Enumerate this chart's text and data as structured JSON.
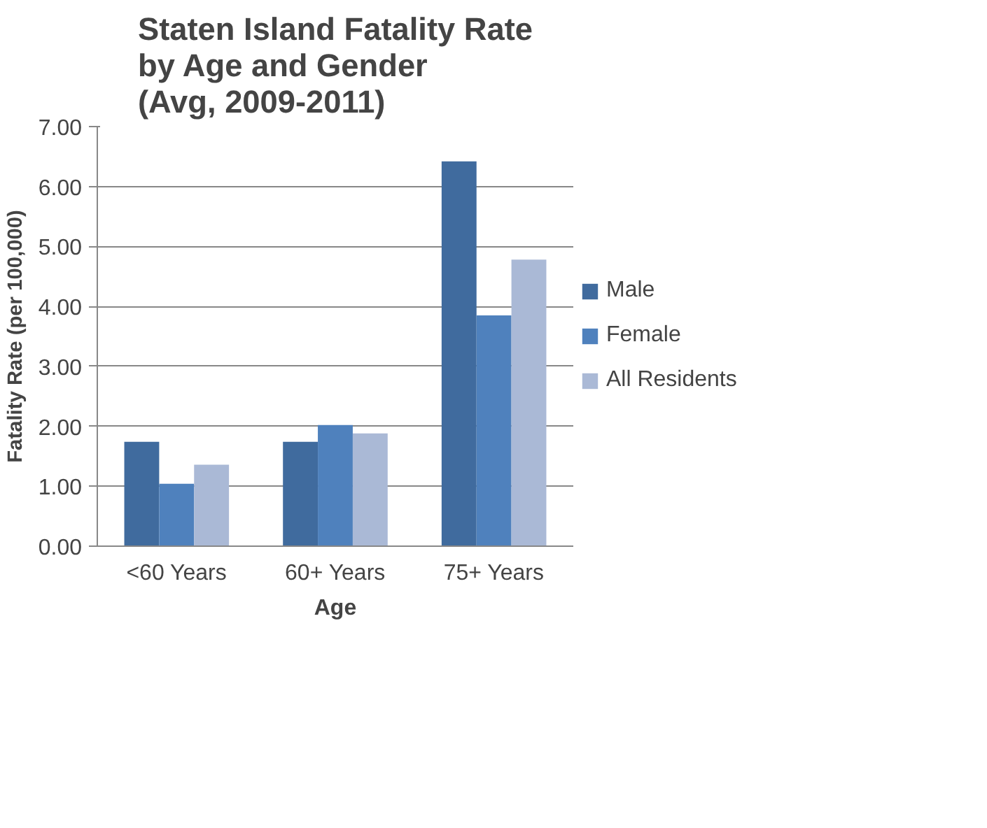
{
  "chart_data": {
    "type": "bar",
    "title": "Staten Island Fatality Rate\nby Age and Gender\n(Avg, 2009-2011)",
    "xlabel": "Age",
    "ylabel": "Fatality Rate (per 100,000)",
    "categories": [
      "<60 Years",
      "60+ Years",
      "75+ Years"
    ],
    "series": [
      {
        "name": "Male",
        "color": "#406b9e",
        "values": [
          1.74,
          1.74,
          6.42
        ]
      },
      {
        "name": "Female",
        "color": "#4f81bd",
        "values": [
          1.04,
          2.02,
          3.85
        ]
      },
      {
        "name": "All Residents",
        "color": "#aab9d6",
        "values": [
          1.36,
          1.88,
          4.78
        ]
      }
    ],
    "ylim": [
      0,
      7
    ],
    "yticks": [
      {
        "value": 0,
        "label": "0.00"
      },
      {
        "value": 1,
        "label": "1.00"
      },
      {
        "value": 2,
        "label": "2.00"
      },
      {
        "value": 3,
        "label": "3.00"
      },
      {
        "value": 4,
        "label": "4.00"
      },
      {
        "value": 5,
        "label": "5.00"
      },
      {
        "value": 6,
        "label": "6.00"
      },
      {
        "value": 7,
        "label": "7.00"
      }
    ],
    "grid": "y",
    "legend": "right"
  }
}
